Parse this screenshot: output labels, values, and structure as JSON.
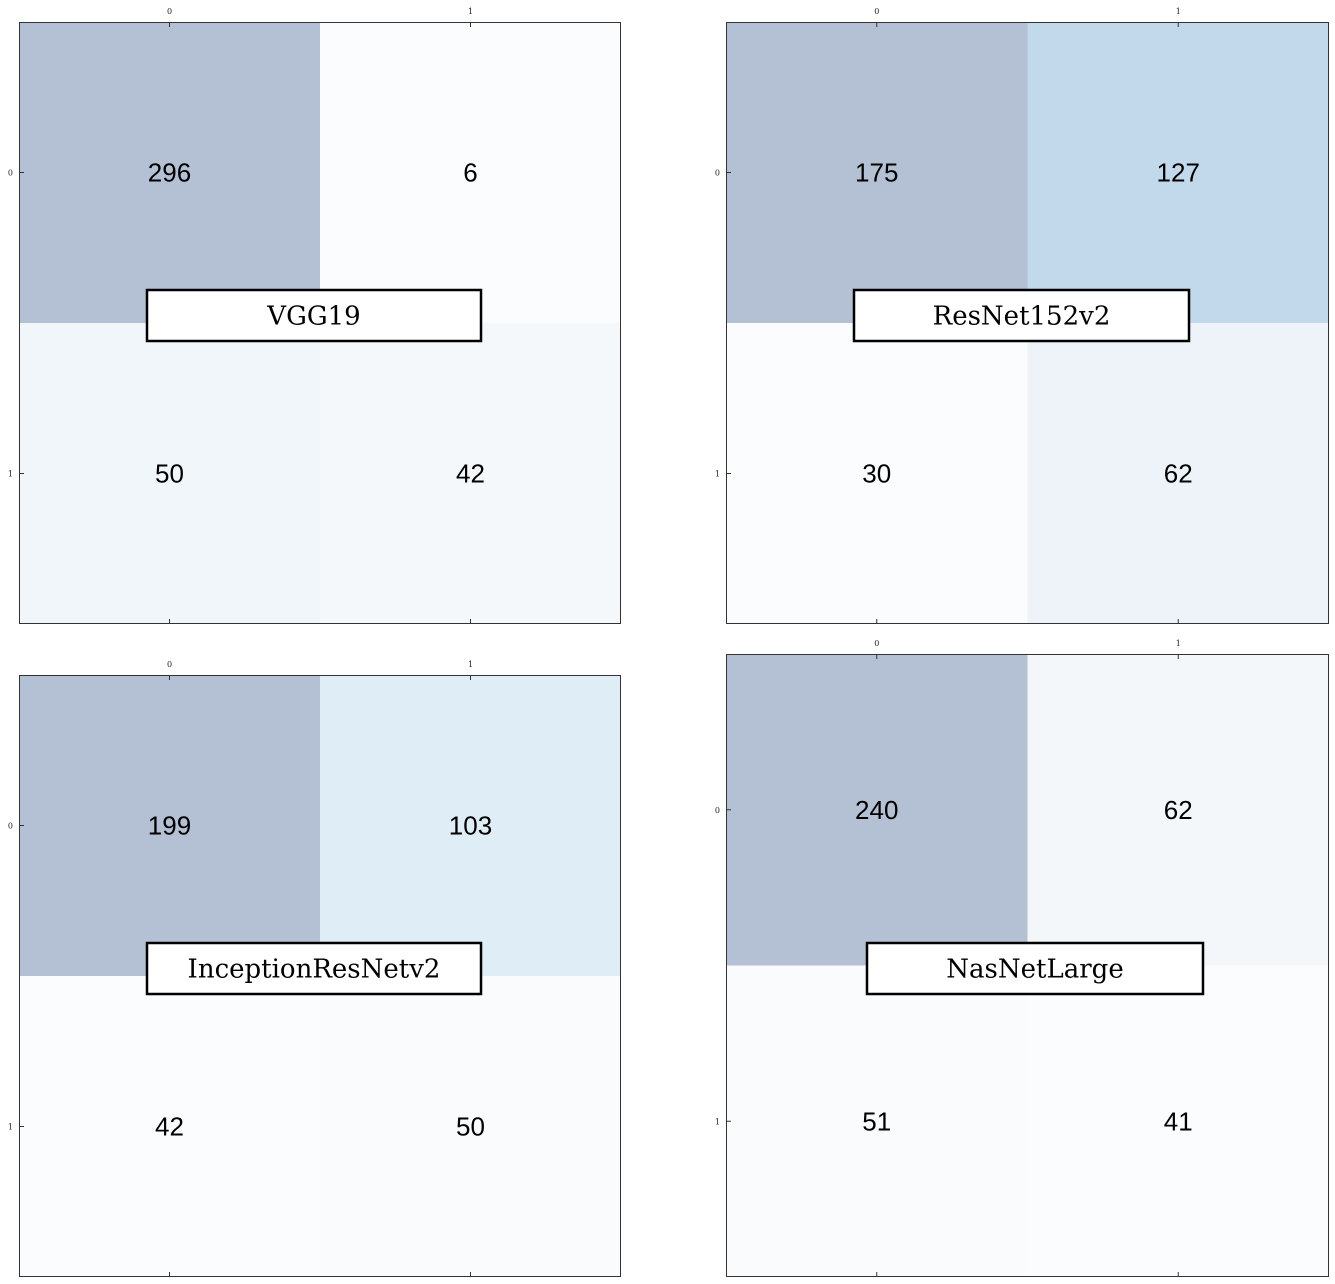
{
  "chart_data": [
    {
      "type": "heatmap",
      "title": "VGG19",
      "x_ticks": [
        "0",
        "1"
      ],
      "y_ticks": [
        "0",
        "1"
      ],
      "values": [
        [
          296,
          6
        ],
        [
          50,
          42
        ]
      ],
      "cell_colors": [
        [
          "#b4c0d3",
          "#fbfcfe"
        ],
        [
          "#f1f6fb",
          "#f4f8fb"
        ]
      ]
    },
    {
      "type": "heatmap",
      "title": "ResNet152v2",
      "x_ticks": [
        "0",
        "1"
      ],
      "y_ticks": [
        "0",
        "1"
      ],
      "values": [
        [
          175,
          127
        ],
        [
          30,
          62
        ]
      ],
      "cell_colors": [
        [
          "#b4c0d3",
          "#c2d9eb"
        ],
        [
          "#fbfcfe",
          "#eef3fa"
        ]
      ]
    },
    {
      "type": "heatmap",
      "title": "InceptionResNetv2",
      "x_ticks": [
        "0",
        "1"
      ],
      "y_ticks": [
        "0",
        "1"
      ],
      "values": [
        [
          199,
          103
        ],
        [
          42,
          50
        ]
      ],
      "cell_colors": [
        [
          "#b4c0d3",
          "#dfeef6"
        ],
        [
          "#fbfcfe",
          "#f9fbfd"
        ]
      ]
    },
    {
      "type": "heatmap",
      "title": "NasNetLarge",
      "x_ticks": [
        "0",
        "1"
      ],
      "y_ticks": [
        "0",
        "1"
      ],
      "values": [
        [
          240,
          62
        ],
        [
          51,
          41
        ]
      ],
      "cell_colors": [
        [
          "#b4c0d3",
          "#f3f7fa"
        ],
        [
          "#fafbfd",
          "#fbfcfe"
        ]
      ]
    }
  ]
}
